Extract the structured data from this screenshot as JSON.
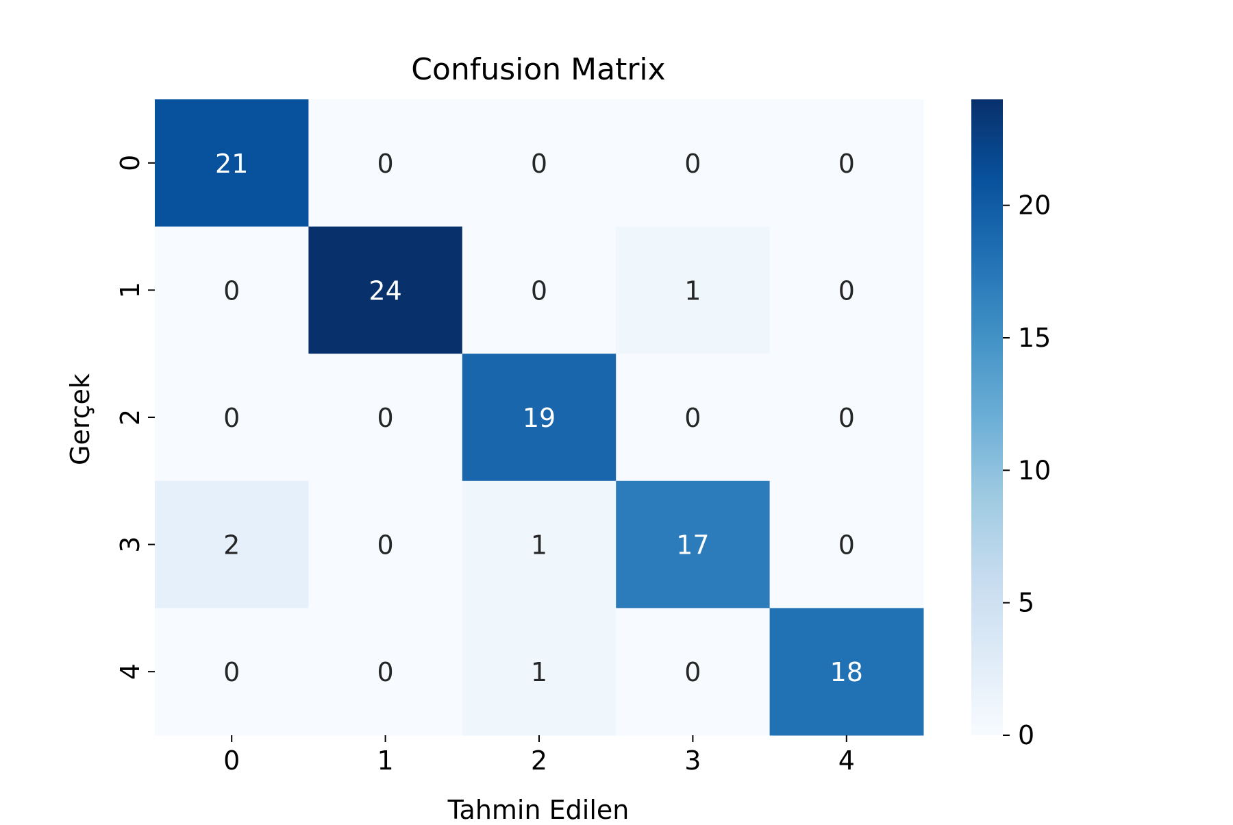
{
  "chart_data": {
    "type": "heatmap",
    "title": "Confusion Matrix",
    "xlabel": "Tahmin Edilen",
    "ylabel": "Gerçek",
    "x_categories": [
      "0",
      "1",
      "2",
      "3",
      "4"
    ],
    "y_categories": [
      "0",
      "1",
      "2",
      "3",
      "4"
    ],
    "values": [
      [
        21,
        0,
        0,
        0,
        0
      ],
      [
        0,
        24,
        0,
        1,
        0
      ],
      [
        0,
        0,
        19,
        0,
        0
      ],
      [
        2,
        0,
        1,
        17,
        0
      ],
      [
        0,
        0,
        1,
        0,
        18
      ]
    ],
    "colormap": "Blues",
    "color_range": [
      0,
      24
    ],
    "colorbar_ticks": [
      0,
      5,
      10,
      15,
      20
    ],
    "colorbar_tick_labels": [
      "0",
      "5",
      "10",
      "15",
      "20"
    ],
    "colors": {
      "low": "#f7fbff",
      "high": "#08306b"
    }
  }
}
